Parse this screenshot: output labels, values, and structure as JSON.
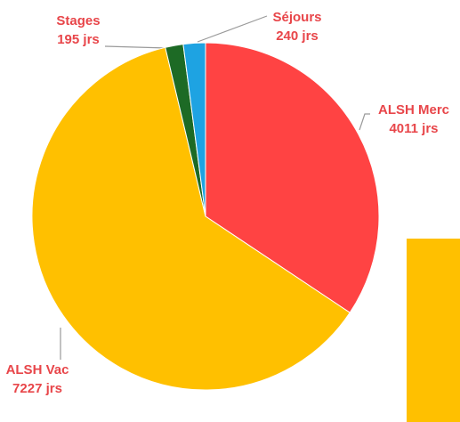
{
  "chart_data": {
    "type": "pie",
    "categories": [
      "ALSH Merc",
      "ALSH Vac",
      "Stages",
      "Séjours"
    ],
    "values": [
      4011,
      7227,
      195,
      240
    ],
    "value_labels": [
      "4011 jrs",
      "7227 jrs",
      "195 jrs",
      "240 jrs"
    ],
    "colors": [
      "#ff4343",
      "#ffc000",
      "#1d6a25",
      "#1ea3e2"
    ]
  }
}
